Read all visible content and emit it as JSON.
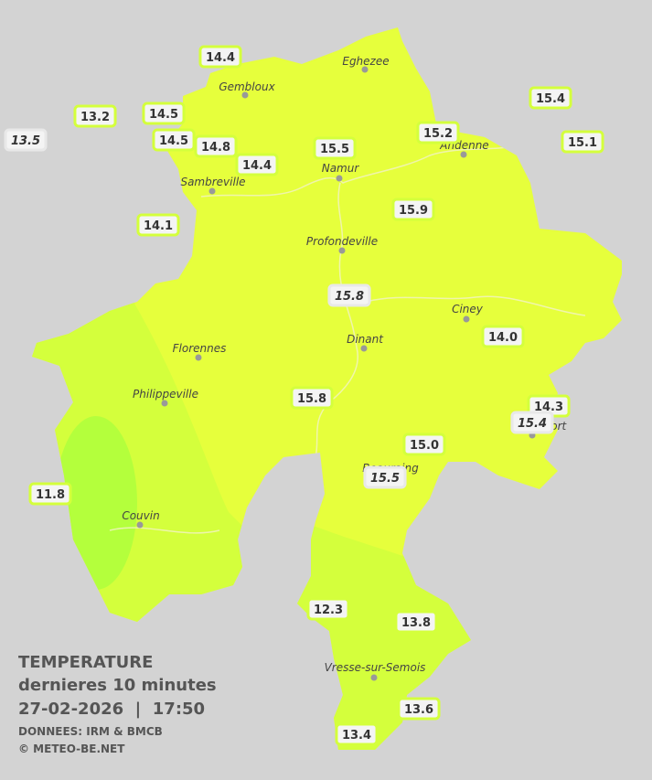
{
  "cities": [
    {
      "name": "Eghezee"
    },
    {
      "name": "Gembloux"
    },
    {
      "name": "Andenne"
    },
    {
      "name": "Namur"
    },
    {
      "name": "Sambreville"
    },
    {
      "name": "Profondeville"
    },
    {
      "name": "Ciney"
    },
    {
      "name": "Dinant"
    },
    {
      "name": "Florennes"
    },
    {
      "name": "Philippeville"
    },
    {
      "name": "Couvin"
    },
    {
      "name": "Vresse-sur-Semois"
    },
    {
      "name": "Rochefort"
    },
    {
      "name": "Beauraing"
    }
  ],
  "stations": [
    {
      "value": "14.4"
    },
    {
      "value": "13.2"
    },
    {
      "value": "13.5"
    },
    {
      "value": "14.5"
    },
    {
      "value": "14.5"
    },
    {
      "value": "14.8"
    },
    {
      "value": "14.4"
    },
    {
      "value": "15.5"
    },
    {
      "value": "15.2"
    },
    {
      "value": "15.4"
    },
    {
      "value": "15.1"
    },
    {
      "value": "15.9"
    },
    {
      "value": "14.1"
    },
    {
      "value": "15.8"
    },
    {
      "value": "14.0"
    },
    {
      "value": "15.8"
    },
    {
      "value": "14.3"
    },
    {
      "value": "15.4"
    },
    {
      "value": "15.0"
    },
    {
      "value": "15.5"
    },
    {
      "value": "11.8"
    },
    {
      "value": "12.3"
    },
    {
      "value": "13.8"
    },
    {
      "value": "13.6"
    },
    {
      "value": "13.4"
    }
  ],
  "caption": {
    "title": "TEMPERATURE",
    "subtitle": "dernieres 10 minutes",
    "datetime": "27-02-2026  |  17:50",
    "source": "DONNEES: IRM & BMCB",
    "copyright": "© METEO-BE.NET"
  }
}
